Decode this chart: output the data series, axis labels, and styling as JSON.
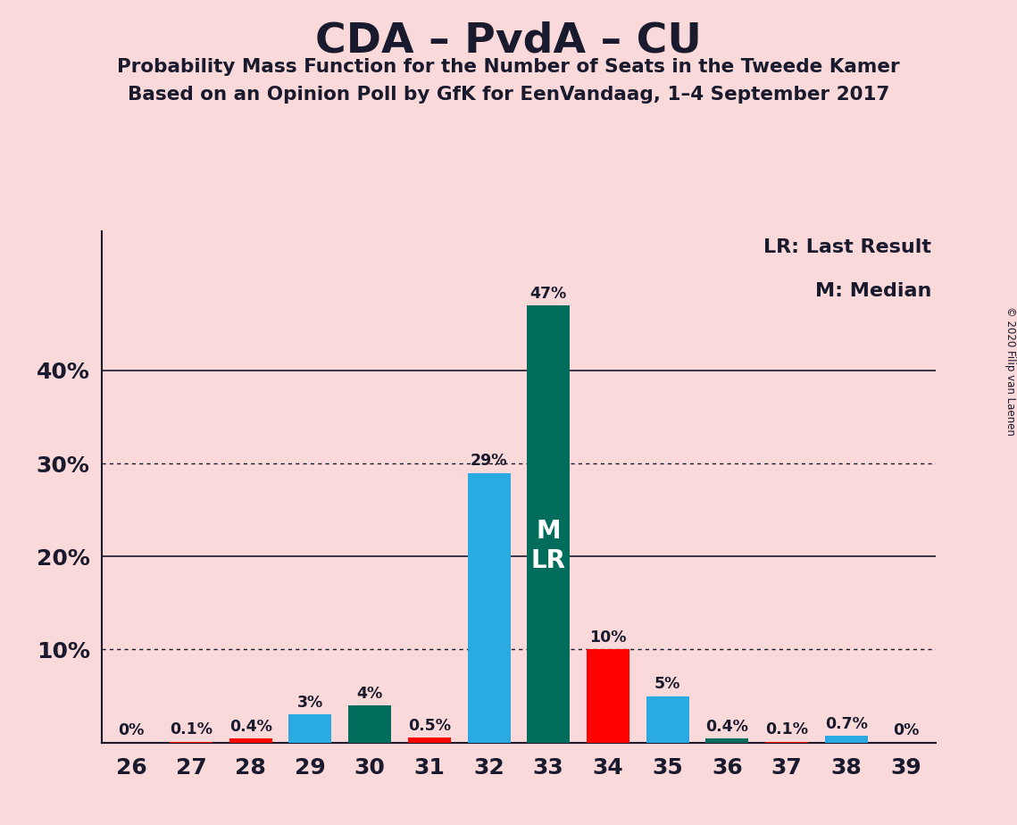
{
  "title": "CDA – PvdA – CU",
  "subtitle1": "Probability Mass Function for the Number of Seats in the Tweede Kamer",
  "subtitle2": "Based on an Opinion Poll by GfK for EenVandaag, 1–4 September 2017",
  "copyright": "© 2020 Filip van Laenen",
  "legend_lr": "LR: Last Result",
  "legend_m": "M: Median",
  "seats": [
    26,
    27,
    28,
    29,
    30,
    31,
    32,
    33,
    34,
    35,
    36,
    37,
    38,
    39
  ],
  "values": [
    0.0,
    0.1,
    0.4,
    3.0,
    4.0,
    0.5,
    29.0,
    47.0,
    10.0,
    5.0,
    0.4,
    0.1,
    0.7,
    0.0
  ],
  "labels": [
    "0%",
    "0.1%",
    "0.4%",
    "3%",
    "4%",
    "0.5%",
    "29%",
    "47%",
    "10%",
    "5%",
    "0.4%",
    "0.1%",
    "0.7%",
    "0%"
  ],
  "bar_colors": [
    "#29ABE2",
    "#FF0000",
    "#FF0000",
    "#29ABE2",
    "#006C5B",
    "#FF0000",
    "#29ABE2",
    "#006C5B",
    "#FF0000",
    "#29ABE2",
    "#006C5B",
    "#FF0000",
    "#29ABE2",
    "#29ABE2"
  ],
  "median_seat": 33,
  "lr_seat": 33,
  "background_color": "#F9D9D9",
  "ylim": [
    0,
    55
  ],
  "dotted_lines": [
    10,
    30
  ],
  "solid_lines": [
    20,
    40
  ],
  "ytick_positions": [
    10,
    20,
    30,
    40
  ],
  "ytick_labels": [
    "10%",
    "20%",
    "30%",
    "40%"
  ]
}
